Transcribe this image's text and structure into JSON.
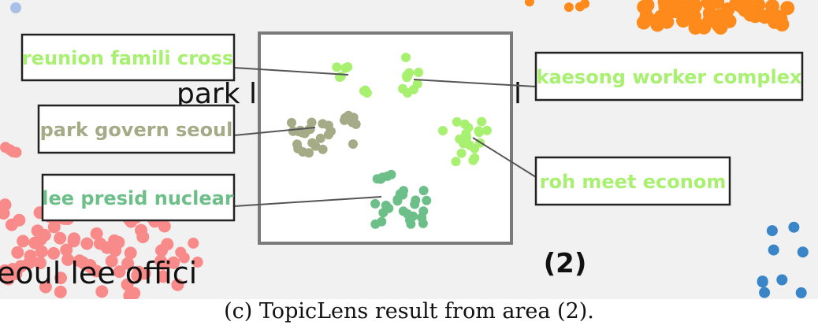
{
  "background_labels": {
    "left_bottom": "eoul lee offici",
    "center_partial": "park le",
    "right_partial": "l"
  },
  "area_marker": "(2)",
  "lens_topics": [
    {
      "id": "reunion",
      "label": "reunion famili cross",
      "color": "#a8f070"
    },
    {
      "id": "kaesong",
      "label": "kaesong worker complex",
      "color": "#a8f070"
    },
    {
      "id": "park",
      "label": "park govern seoul",
      "color": "#a4ab86"
    },
    {
      "id": "roh",
      "label": "roh meet econom",
      "color": "#a8f070"
    },
    {
      "id": "lee",
      "label": "lee presid nuclear",
      "color": "#6cbf88"
    }
  ],
  "background_cluster_colors": {
    "left": "#f98a8a",
    "top_right": "#ff8a1c",
    "right": "#3a85c8",
    "corner": "#a8c0e8"
  },
  "caption": "(c) TopicLens result from area (2)."
}
